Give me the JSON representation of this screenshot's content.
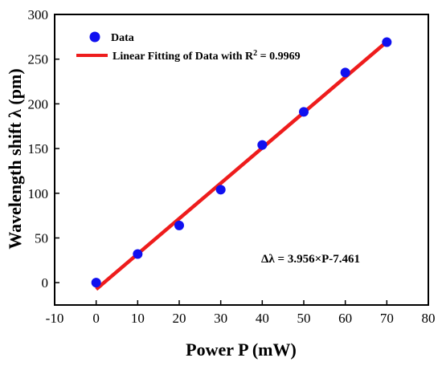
{
  "chart_data": {
    "type": "scatter",
    "xlabel": "Power P (mW)",
    "ylabel": "Wavelength shift λ (pm)",
    "xlim": [
      -10,
      80
    ],
    "ylim": [
      -25,
      300
    ],
    "xticks": [
      -10,
      0,
      10,
      20,
      30,
      40,
      50,
      60,
      70,
      80
    ],
    "yticks": [
      0,
      50,
      100,
      150,
      200,
      250,
      300
    ],
    "grid": false,
    "legend_position": "top-left",
    "series": [
      {
        "name": "Data",
        "kind": "scatter",
        "color": "#1010f0",
        "x": [
          0,
          10,
          20,
          30,
          40,
          50,
          60,
          70
        ],
        "y": [
          0,
          32,
          64,
          104,
          154,
          191,
          235,
          269
        ]
      },
      {
        "name": "Linear Fitting of Data with R² = 0.9969",
        "kind": "line",
        "color": "#ee1c1c",
        "x": [
          0,
          70
        ],
        "y": [
          -7.461,
          269.459
        ]
      }
    ],
    "legend": {
      "data_label": "Data",
      "fit_label_prefix": "Linear Fitting of Data with R",
      "fit_label_sup": "2",
      "fit_label_suffix": " = 0.9969"
    },
    "annotation": "Δλ = 3.956×P-7.461"
  }
}
